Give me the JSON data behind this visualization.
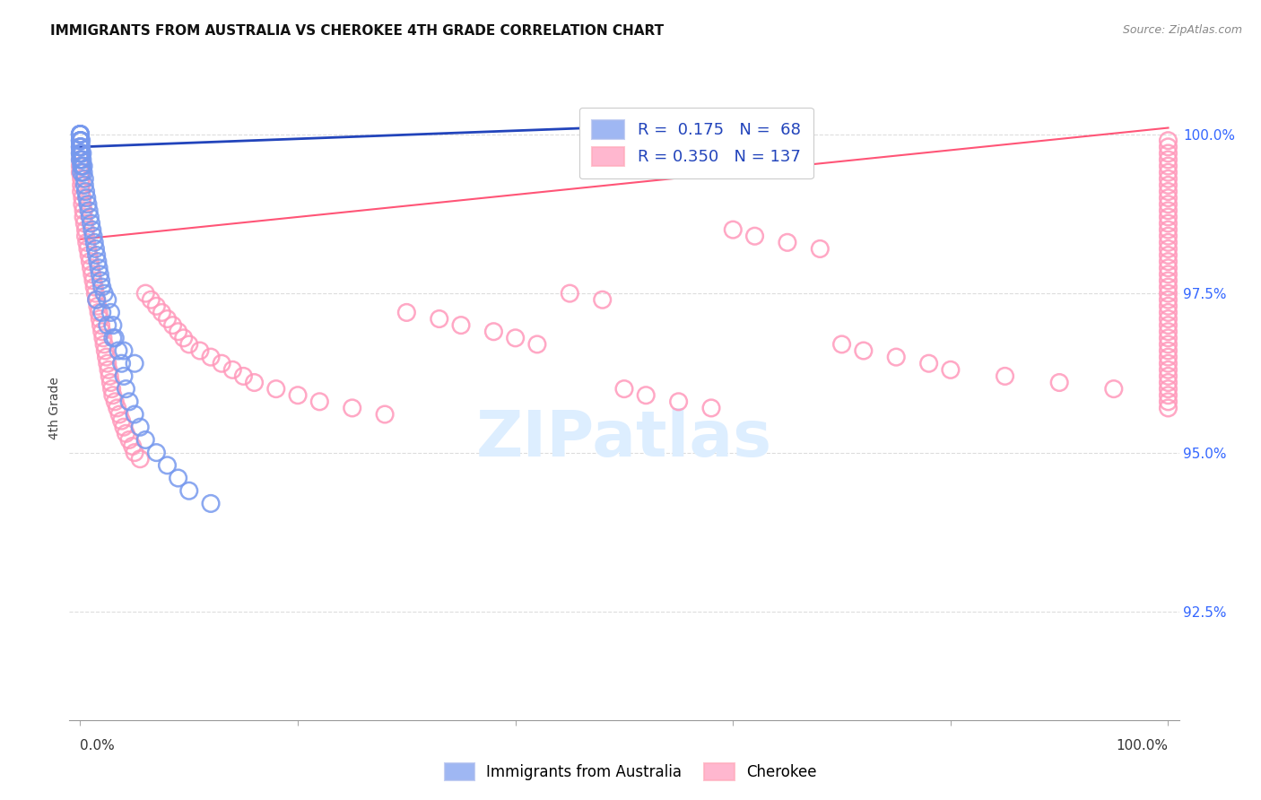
{
  "title": "IMMIGRANTS FROM AUSTRALIA VS CHEROKEE 4TH GRADE CORRELATION CHART",
  "source": "Source: ZipAtlas.com",
  "ylabel": "4th Grade",
  "ytick_labels": [
    "92.5%",
    "95.0%",
    "97.5%",
    "100.0%"
  ],
  "ytick_values": [
    0.925,
    0.95,
    0.975,
    1.0
  ],
  "xlim": [
    0.0,
    1.0
  ],
  "ylim": [
    0.908,
    1.006
  ],
  "legend_blue_r": "0.175",
  "legend_blue_n": "68",
  "legend_pink_r": "0.350",
  "legend_pink_n": "137",
  "blue_color": "#7799ee",
  "pink_color": "#ff99bb",
  "blue_line_color": "#2244bb",
  "pink_line_color": "#ff5577",
  "watermark_color": "#ddeeff",
  "grid_color": "#dddddd",
  "right_tick_color": "#3366ff",
  "blue_scatter_x": [
    0.0,
    0.0,
    0.0,
    0.0,
    0.0,
    0.0,
    0.0,
    0.0,
    0.0,
    0.0,
    0.0,
    0.0,
    0.0,
    0.0,
    0.0,
    0.001,
    0.001,
    0.001,
    0.001,
    0.001,
    0.001,
    0.002,
    0.002,
    0.002,
    0.003,
    0.003,
    0.004,
    0.004,
    0.005,
    0.006,
    0.007,
    0.008,
    0.009,
    0.01,
    0.011,
    0.012,
    0.013,
    0.014,
    0.015,
    0.016,
    0.017,
    0.018,
    0.019,
    0.02,
    0.022,
    0.025,
    0.028,
    0.03,
    0.032,
    0.035,
    0.038,
    0.04,
    0.042,
    0.045,
    0.05,
    0.055,
    0.06,
    0.07,
    0.08,
    0.09,
    0.1,
    0.12,
    0.015,
    0.02,
    0.025,
    0.03,
    0.04,
    0.05
  ],
  "blue_scatter_y": [
    1.0,
    1.0,
    1.0,
    1.0,
    1.0,
    0.999,
    0.999,
    0.999,
    0.999,
    0.998,
    0.998,
    0.998,
    0.997,
    0.997,
    0.996,
    0.999,
    0.998,
    0.997,
    0.996,
    0.995,
    0.994,
    0.997,
    0.996,
    0.995,
    0.995,
    0.994,
    0.993,
    0.992,
    0.991,
    0.99,
    0.989,
    0.988,
    0.987,
    0.986,
    0.985,
    0.984,
    0.983,
    0.982,
    0.981,
    0.98,
    0.979,
    0.978,
    0.977,
    0.976,
    0.975,
    0.974,
    0.972,
    0.97,
    0.968,
    0.966,
    0.964,
    0.962,
    0.96,
    0.958,
    0.956,
    0.954,
    0.952,
    0.95,
    0.948,
    0.946,
    0.944,
    0.942,
    0.974,
    0.972,
    0.97,
    0.968,
    0.966,
    0.964
  ],
  "pink_scatter_x": [
    0.0,
    0.0,
    0.0,
    0.0,
    0.0,
    0.001,
    0.001,
    0.001,
    0.002,
    0.002,
    0.003,
    0.003,
    0.004,
    0.005,
    0.005,
    0.006,
    0.007,
    0.008,
    0.009,
    0.01,
    0.011,
    0.012,
    0.013,
    0.014,
    0.015,
    0.016,
    0.017,
    0.018,
    0.019,
    0.02,
    0.021,
    0.022,
    0.023,
    0.024,
    0.025,
    0.026,
    0.027,
    0.028,
    0.029,
    0.03,
    0.032,
    0.034,
    0.036,
    0.038,
    0.04,
    0.042,
    0.045,
    0.048,
    0.05,
    0.055,
    0.06,
    0.065,
    0.07,
    0.075,
    0.08,
    0.085,
    0.09,
    0.095,
    0.1,
    0.11,
    0.12,
    0.13,
    0.14,
    0.15,
    0.16,
    0.18,
    0.2,
    0.22,
    0.25,
    0.28,
    0.3,
    0.33,
    0.35,
    0.38,
    0.4,
    0.42,
    0.45,
    0.48,
    0.5,
    0.52,
    0.55,
    0.58,
    0.6,
    0.62,
    0.65,
    0.68,
    0.7,
    0.72,
    0.75,
    0.78,
    0.8,
    0.85,
    0.9,
    0.95,
    1.0,
    1.0,
    1.0,
    1.0,
    1.0,
    1.0,
    1.0,
    1.0,
    1.0,
    1.0,
    1.0,
    1.0,
    1.0,
    1.0,
    1.0,
    1.0,
    1.0,
    1.0,
    1.0,
    1.0,
    1.0,
    1.0,
    1.0,
    1.0,
    1.0,
    1.0,
    1.0,
    1.0,
    1.0,
    1.0,
    1.0,
    1.0,
    1.0,
    1.0,
    1.0,
    1.0,
    1.0,
    1.0,
    1.0,
    1.0,
    1.0,
    1.0,
    1.0
  ],
  "pink_scatter_y": [
    0.998,
    0.997,
    0.996,
    0.995,
    0.994,
    0.993,
    0.992,
    0.991,
    0.99,
    0.989,
    0.988,
    0.987,
    0.986,
    0.985,
    0.984,
    0.983,
    0.982,
    0.981,
    0.98,
    0.979,
    0.978,
    0.977,
    0.976,
    0.975,
    0.974,
    0.973,
    0.972,
    0.971,
    0.97,
    0.969,
    0.968,
    0.967,
    0.966,
    0.965,
    0.964,
    0.963,
    0.962,
    0.961,
    0.96,
    0.959,
    0.958,
    0.957,
    0.956,
    0.955,
    0.954,
    0.953,
    0.952,
    0.951,
    0.95,
    0.949,
    0.975,
    0.974,
    0.973,
    0.972,
    0.971,
    0.97,
    0.969,
    0.968,
    0.967,
    0.966,
    0.965,
    0.964,
    0.963,
    0.962,
    0.961,
    0.96,
    0.959,
    0.958,
    0.957,
    0.956,
    0.972,
    0.971,
    0.97,
    0.969,
    0.968,
    0.967,
    0.975,
    0.974,
    0.96,
    0.959,
    0.958,
    0.957,
    0.985,
    0.984,
    0.983,
    0.982,
    0.967,
    0.966,
    0.965,
    0.964,
    0.963,
    0.962,
    0.961,
    0.96,
    0.999,
    0.998,
    0.997,
    0.996,
    0.995,
    0.994,
    0.993,
    0.992,
    0.991,
    0.99,
    0.989,
    0.988,
    0.987,
    0.986,
    0.985,
    0.984,
    0.983,
    0.982,
    0.981,
    0.98,
    0.979,
    0.978,
    0.977,
    0.976,
    0.975,
    0.974,
    0.973,
    0.972,
    0.971,
    0.97,
    0.969,
    0.968,
    0.967,
    0.966,
    0.965,
    0.964,
    0.963,
    0.962,
    0.961,
    0.96,
    0.959,
    0.958,
    0.957
  ],
  "blue_line_x0": 0.0,
  "blue_line_x1": 0.47,
  "blue_line_y0": 0.998,
  "blue_line_y1": 1.001,
  "pink_line_x0": 0.0,
  "pink_line_x1": 1.0,
  "pink_line_y0": 0.9835,
  "pink_line_y1": 1.001
}
